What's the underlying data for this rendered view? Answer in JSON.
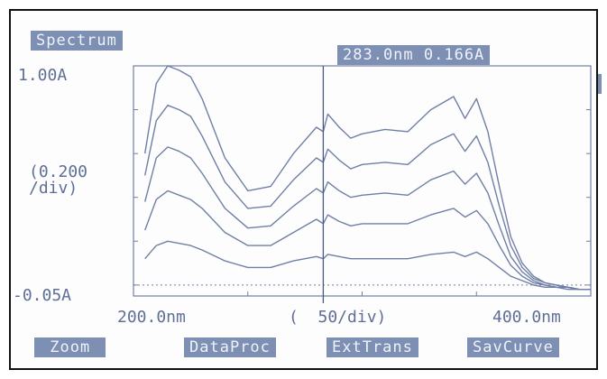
{
  "header": {
    "title": "Spectrum",
    "cursor_readout": "283.0nm  0.166A"
  },
  "axes": {
    "y_top_label": "1.00A",
    "y_scale_label": "(0.200\n/div)",
    "y_bottom_label": "-0.05A",
    "x_left_label": "200.0nm",
    "x_scale_label": "(  50/div)",
    "x_right_label": "400.0nm"
  },
  "softkeys": [
    {
      "label": " Zoom "
    },
    {
      "label": "DataProc"
    },
    {
      "label": "ExtTrans"
    },
    {
      "label": "SavCurve"
    }
  ],
  "colors": {
    "trace": "#6f7fa6",
    "label_bg": "#7d8fb3"
  },
  "chart_data": {
    "type": "line",
    "title": "Spectrum",
    "x_unit": "nm",
    "y_unit": "A",
    "xlim": [
      200,
      400
    ],
    "ylim": [
      -0.05,
      1.0
    ],
    "cursor": {
      "x": 283.0,
      "y": 0.166
    },
    "series": [
      {
        "x": [
          205,
          210,
          215,
          220,
          225,
          230,
          240,
          250,
          260,
          270,
          280,
          283,
          285,
          290,
          295,
          300,
          310,
          320,
          330,
          340,
          345,
          350,
          355,
          360,
          365,
          370,
          375,
          380,
          385,
          390,
          395,
          400
        ],
        "values": [
          0.6,
          0.92,
          1.0,
          0.98,
          0.95,
          0.85,
          0.58,
          0.43,
          0.45,
          0.6,
          0.72,
          0.7,
          0.78,
          0.72,
          0.67,
          0.69,
          0.71,
          0.7,
          0.8,
          0.86,
          0.76,
          0.85,
          0.7,
          0.45,
          0.22,
          0.1,
          0.04,
          0.01,
          0.0,
          -0.01,
          -0.02,
          -0.02
        ]
      },
      {
        "x": [
          205,
          210,
          215,
          220,
          225,
          230,
          240,
          250,
          260,
          270,
          280,
          283,
          285,
          290,
          295,
          300,
          310,
          320,
          330,
          340,
          345,
          350,
          355,
          360,
          365,
          370,
          375,
          380,
          385,
          390,
          395,
          400
        ],
        "values": [
          0.5,
          0.75,
          0.82,
          0.8,
          0.77,
          0.68,
          0.47,
          0.35,
          0.36,
          0.48,
          0.58,
          0.56,
          0.62,
          0.57,
          0.53,
          0.55,
          0.56,
          0.55,
          0.64,
          0.69,
          0.61,
          0.68,
          0.56,
          0.36,
          0.18,
          0.08,
          0.03,
          0.01,
          0.0,
          -0.01,
          -0.02,
          -0.02
        ]
      },
      {
        "x": [
          205,
          210,
          215,
          220,
          225,
          230,
          240,
          250,
          260,
          270,
          280,
          283,
          285,
          290,
          295,
          300,
          310,
          320,
          330,
          340,
          345,
          350,
          355,
          360,
          365,
          370,
          375,
          380,
          385,
          390,
          395,
          400
        ],
        "values": [
          0.38,
          0.58,
          0.63,
          0.61,
          0.58,
          0.51,
          0.35,
          0.26,
          0.27,
          0.36,
          0.44,
          0.42,
          0.47,
          0.43,
          0.4,
          0.41,
          0.42,
          0.41,
          0.48,
          0.52,
          0.46,
          0.51,
          0.42,
          0.27,
          0.13,
          0.06,
          0.02,
          0.0,
          -0.01,
          -0.01,
          -0.02,
          -0.02
        ]
      },
      {
        "x": [
          205,
          210,
          215,
          220,
          225,
          230,
          240,
          250,
          260,
          270,
          280,
          283,
          285,
          290,
          295,
          300,
          310,
          320,
          330,
          340,
          345,
          350,
          355,
          360,
          365,
          370,
          375,
          380,
          385,
          390,
          395,
          400
        ],
        "values": [
          0.25,
          0.39,
          0.43,
          0.41,
          0.39,
          0.35,
          0.24,
          0.18,
          0.18,
          0.24,
          0.3,
          0.28,
          0.32,
          0.29,
          0.27,
          0.28,
          0.28,
          0.28,
          0.32,
          0.35,
          0.31,
          0.34,
          0.28,
          0.18,
          0.09,
          0.04,
          0.01,
          0.0,
          -0.01,
          -0.01,
          -0.02,
          -0.02
        ]
      },
      {
        "x": [
          205,
          210,
          215,
          220,
          225,
          230,
          240,
          250,
          260,
          270,
          280,
          283,
          285,
          290,
          295,
          300,
          310,
          320,
          330,
          340,
          345,
          350,
          355,
          360,
          365,
          370,
          375,
          380,
          385,
          390,
          395,
          400
        ],
        "values": [
          0.12,
          0.18,
          0.2,
          0.19,
          0.18,
          0.16,
          0.11,
          0.08,
          0.08,
          0.11,
          0.13,
          0.12,
          0.14,
          0.13,
          0.12,
          0.12,
          0.12,
          0.12,
          0.14,
          0.15,
          0.13,
          0.15,
          0.12,
          0.08,
          0.04,
          0.02,
          0.0,
          -0.01,
          -0.01,
          -0.02,
          -0.02,
          -0.02
        ]
      }
    ]
  }
}
